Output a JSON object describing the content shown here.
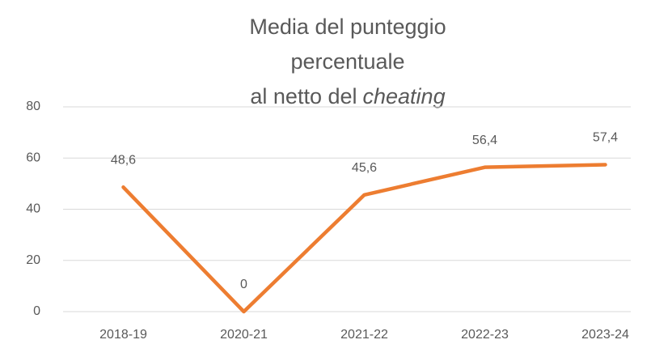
{
  "chart_data": {
    "type": "line",
    "title": [
      "Media del punteggio",
      "percentuale",
      "al netto del"
    ],
    "title_italic": "cheating",
    "categories": [
      "2018-19",
      "2020-21",
      "2021-22",
      "2022-23",
      "2023-24"
    ],
    "values": [
      48.6,
      0,
      45.6,
      56.4,
      57.4
    ],
    "value_labels": [
      "48,6",
      "0",
      "45,6",
      "56,4",
      "57,4"
    ],
    "color": "#ed7d31",
    "ylim": [
      0,
      80
    ],
    "yticks": [
      0,
      20,
      40,
      60,
      80
    ],
    "grid": true
  }
}
